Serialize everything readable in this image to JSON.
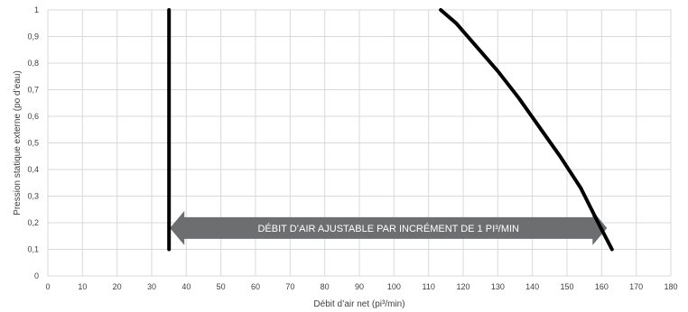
{
  "chart_data": {
    "type": "line",
    "xlabel": "Débit d’air net (pi³/min)",
    "ylabel": "Pression statique externe (po d’eau)",
    "xlim": [
      0,
      180
    ],
    "ylim": [
      0,
      1
    ],
    "x_ticks": [
      "0",
      "10",
      "20",
      "30",
      "40",
      "50",
      "60",
      "70",
      "80",
      "90",
      "100",
      "110",
      "120",
      "130",
      "140",
      "150",
      "160",
      "170",
      "180"
    ],
    "y_ticks": [
      "0",
      "0,1",
      "0,2",
      "0,3",
      "0,4",
      "0,5",
      "0,6",
      "0,7",
      "0,8",
      "0,9",
      "1"
    ],
    "grid": true,
    "series": [
      {
        "x": [
          35,
          35
        ],
        "y": [
          0.1,
          1.0
        ]
      },
      {
        "x": [
          113.5,
          118,
          124,
          130,
          136,
          142,
          148,
          154,
          159,
          163
        ],
        "y": [
          1.0,
          0.95,
          0.86,
          0.77,
          0.67,
          0.56,
          0.45,
          0.33,
          0.2,
          0.1
        ]
      }
    ],
    "annotation": {
      "text": "DÉBIT D’AIR AJUSTABLE PAR INCRÉMENT DE 1 PI³/MIN",
      "x_start": 35,
      "x_end": 160,
      "y": 0.18
    },
    "colors": {
      "line": "#000000",
      "arrow": "#6d6e70",
      "grid": "#d9d9d9"
    }
  }
}
